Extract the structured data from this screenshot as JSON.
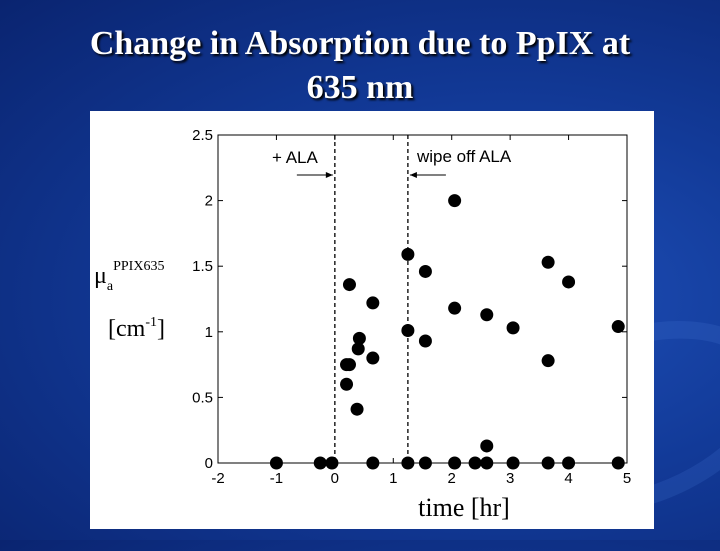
{
  "slide": {
    "title_line1": "Change in Absorption due to PpIX at",
    "title_line2": "635 nm"
  },
  "chart_data": {
    "type": "scatter",
    "xlim": [
      -2,
      5
    ],
    "ylim": [
      0,
      2.5
    ],
    "xticks": [
      "-2",
      "-1",
      "0",
      "1",
      "2",
      "3",
      "4",
      "5"
    ],
    "yticks": [
      "0",
      "0.5",
      "1",
      "1.5",
      "2",
      "2.5"
    ],
    "xlabel": "time [hr]",
    "ylabel": {
      "symbol": "μ",
      "subscript": "a",
      "superscript": "PPIX635",
      "unit": "[cm",
      "unit_exp": "-1",
      "unit_close": "]"
    },
    "grid": false,
    "annotations": [
      {
        "text": "+ ALA",
        "x": 0,
        "arrow": "right"
      },
      {
        "text": "wipe off ALA",
        "x": 1.25,
        "arrow": "left"
      }
    ],
    "x": [
      -1,
      -0.25,
      -0.05,
      0.2,
      0.2,
      0.25,
      0.25,
      0.38,
      0.4,
      0.42,
      0.65,
      0.65,
      0.65,
      1.25,
      1.25,
      1.25,
      1.55,
      1.55,
      1.55,
      2.05,
      2.05,
      2.05,
      2.4,
      2.6,
      2.6,
      2.6,
      3.05,
      3.05,
      3.65,
      3.65,
      3.65,
      4.0,
      4.0,
      4.85,
      4.85
    ],
    "y": [
      0,
      0,
      0,
      0.6,
      0.75,
      1.36,
      0.75,
      0.41,
      0.87,
      0.95,
      1.22,
      0.8,
      0,
      1.59,
      1.01,
      0,
      1.46,
      0.93,
      0,
      2.0,
      1.18,
      0,
      0,
      1.13,
      0.13,
      0,
      1.03,
      0,
      1.53,
      0.78,
      0,
      1.38,
      0,
      1.04,
      0
    ]
  }
}
